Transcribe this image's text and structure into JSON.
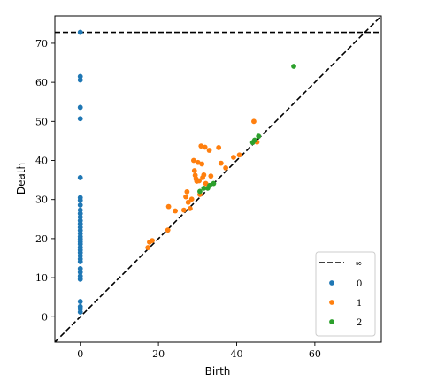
{
  "chart_data": {
    "type": "scatter",
    "title": "",
    "xlabel": "Birth",
    "ylabel": "Death",
    "xlim": [
      -6.5,
      77
    ],
    "ylim": [
      -6.5,
      77
    ],
    "xticks": [
      0,
      20,
      40,
      60
    ],
    "yticks": [
      0,
      10,
      20,
      30,
      40,
      50,
      60,
      70
    ],
    "grid": false,
    "legend_position": "bottom-right",
    "infinity_line": {
      "label": "∞",
      "y": 72.8,
      "style": "dashed",
      "color": "#000000"
    },
    "diagonal": {
      "style": "dashed",
      "color": "#000000"
    },
    "series": [
      {
        "name": "0",
        "color": "#1f77b4",
        "points": [
          [
            0,
            72.8
          ],
          [
            0,
            61.5
          ],
          [
            0,
            60.6
          ],
          [
            0,
            53.6
          ],
          [
            0,
            50.7
          ],
          [
            0,
            35.6
          ],
          [
            0,
            30.5
          ],
          [
            0,
            29.8
          ],
          [
            0,
            28.6
          ],
          [
            0,
            27.3
          ],
          [
            0,
            26.4
          ],
          [
            0,
            25.5
          ],
          [
            0,
            24.6
          ],
          [
            0,
            23.8
          ],
          [
            0,
            22.9
          ],
          [
            0,
            22.1
          ],
          [
            0,
            21.3
          ],
          [
            0,
            20.5
          ],
          [
            0,
            19.9
          ],
          [
            0,
            19.2
          ],
          [
            0,
            18.6
          ],
          [
            0,
            17.8
          ],
          [
            0,
            17.1
          ],
          [
            0,
            16.4
          ],
          [
            0,
            15.6
          ],
          [
            0,
            14.8
          ],
          [
            0,
            14.1
          ],
          [
            0,
            12.3
          ],
          [
            0,
            11.4
          ],
          [
            0,
            10.4
          ],
          [
            0,
            9.6
          ],
          [
            0,
            3.9
          ],
          [
            0,
            2.6
          ],
          [
            0,
            2.0
          ],
          [
            0,
            1.2
          ]
        ]
      },
      {
        "name": "1",
        "color": "#ff7f0e",
        "points": [
          [
            17.3,
            17.7
          ],
          [
            17.7,
            19.1
          ],
          [
            18.4,
            19.5
          ],
          [
            22.4,
            22.2
          ],
          [
            22.6,
            28.2
          ],
          [
            24.3,
            27.1
          ],
          [
            26.5,
            27.3
          ],
          [
            27.0,
            30.7
          ],
          [
            27.3,
            32.0
          ],
          [
            27.6,
            29.3
          ],
          [
            28.1,
            27.7
          ],
          [
            28.5,
            30.1
          ],
          [
            29.0,
            40.0
          ],
          [
            29.2,
            37.4
          ],
          [
            29.4,
            36.2
          ],
          [
            29.6,
            35.3
          ],
          [
            29.8,
            34.7
          ],
          [
            30.1,
            39.5
          ],
          [
            30.4,
            34.8
          ],
          [
            30.6,
            31.3
          ],
          [
            30.9,
            43.7
          ],
          [
            31.1,
            39.1
          ],
          [
            31.3,
            35.6
          ],
          [
            31.6,
            36.3
          ],
          [
            31.9,
            43.4
          ],
          [
            32.1,
            34.1
          ],
          [
            33.0,
            42.6
          ],
          [
            33.4,
            36.0
          ],
          [
            35.4,
            43.3
          ],
          [
            36.0,
            39.3
          ],
          [
            37.2,
            38.1
          ],
          [
            39.2,
            40.8
          ],
          [
            40.7,
            41.4
          ],
          [
            44.4,
            50.0
          ],
          [
            45.2,
            44.7
          ]
        ]
      },
      {
        "name": "2",
        "color": "#2ca02c",
        "points": [
          [
            30.6,
            32.1
          ],
          [
            31.6,
            32.9
          ],
          [
            32.6,
            32.9
          ],
          [
            33.1,
            33.6
          ],
          [
            34.1,
            34.1
          ],
          [
            44.1,
            44.6
          ],
          [
            44.6,
            45.2
          ],
          [
            45.6,
            46.2
          ],
          [
            54.6,
            64.1
          ]
        ]
      }
    ]
  }
}
